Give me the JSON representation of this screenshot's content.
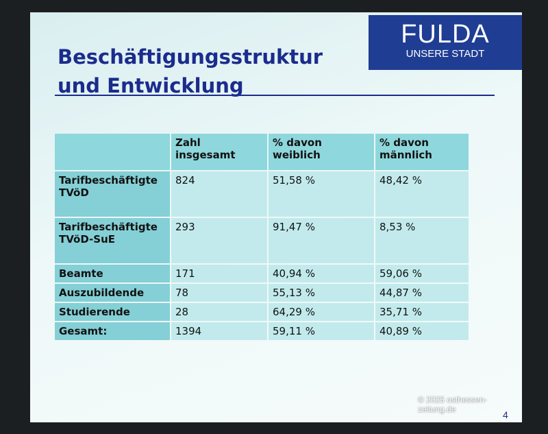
{
  "header": {
    "title": [
      "Beschäftigungsstruktur",
      "und Entwicklung"
    ]
  },
  "logo": {
    "name": "FULDA",
    "subtitle": "UNSERE STADT"
  },
  "table": {
    "header": [
      "Zahl insgesamt",
      "% davon weiblich",
      "% davon männlich"
    ],
    "rows": [
      [
        "Tarifbeschäftigte TVöD",
        "824",
        "51,58 %",
        "48,42 %"
      ],
      [
        "Tarifbeschäftigte TVöD-SuE",
        "293",
        "91,47 %",
        "8,53 %"
      ],
      [
        "Beamte",
        "171",
        "40,94 %",
        "59,06 %"
      ],
      [
        "Auszubildende",
        "78",
        "55,13 %",
        "44,87 %"
      ],
      [
        "Studierende",
        "28",
        "64,29 %",
        "35,71 %"
      ],
      [
        "Gesamt:",
        "1394",
        "59,11 %",
        "40,89 %"
      ]
    ]
  },
  "footer": {
    "watermark": "© 2025 osthessen-zeitung.de",
    "page": "4"
  }
}
